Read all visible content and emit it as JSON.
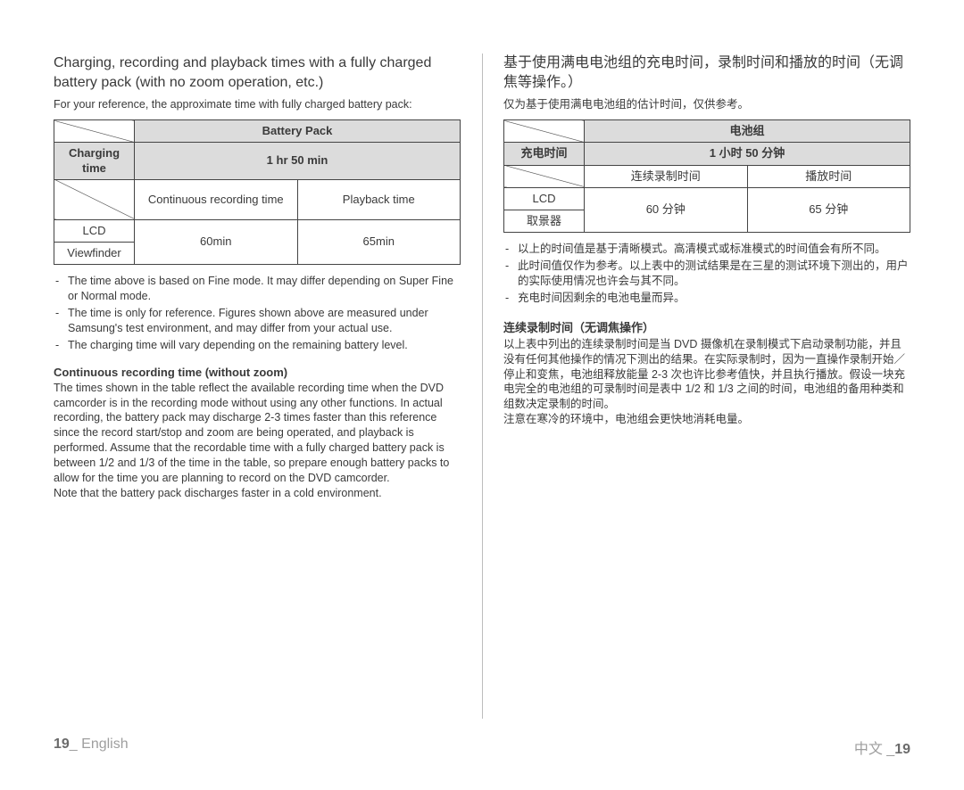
{
  "left": {
    "heading": "Charging, recording and playback times with a fully charged battery pack (with no zoom operation, etc.)",
    "subtext": "For your reference, the approximate time with fully charged battery pack:",
    "table": {
      "header_battery": "Battery Pack",
      "row_charging_label": "Charging time",
      "row_charging_value": "1 hr 50 min",
      "col_rec": "Continuous recording time",
      "col_play": "Playback time",
      "row_lcd": "LCD",
      "row_vf": "Viewfinder",
      "val_rec": "60min",
      "val_play": "65min"
    },
    "notes": [
      "The time above is based on Fine mode. It may differ depending on Super Fine or Normal mode.",
      "The time is only for reference. Figures shown above are measured under Samsung's test environment, and may differ from your actual use.",
      "The charging time will vary depending on the remaining battery level."
    ],
    "section_title": "Continuous recording time (without zoom)",
    "body": "The times shown in the table reflect the available recording time when the DVD camcorder is in the recording mode without using any other functions. In actual recording, the battery pack may discharge 2-3 times faster than this reference since the record start/stop and zoom are being operated, and playback is performed. Assume that the recordable time with a fully charged battery pack is between 1/2 and 1/3 of the time in the table, so prepare enough battery packs to allow for the time you are planning to record on the DVD camcorder.",
    "body2": "Note that the battery pack discharges faster in a cold environment."
  },
  "right": {
    "heading": "基于使用满电电池组的充电时间，录制时间和播放的时间（无调焦等操作。）",
    "subtext": "仅为基于使用满电电池组的估计时间，仅供参考。",
    "table": {
      "header_battery": "电池组",
      "row_charging_label": "充电时间",
      "row_charging_value": "1 小时  50  分钟",
      "col_rec": "连续录制时间",
      "col_play": "播放时间",
      "row_lcd": "LCD",
      "row_vf": "取景器",
      "val_rec": "60 分钟",
      "val_play": "65 分钟"
    },
    "notes": [
      "以上的时间值是基于清晰模式。高清模式或标准模式的时间值会有所不同。",
      "此时间值仅作为参考。以上表中的测试结果是在三星的测试环境下测出的，用户的实际使用情况也许会与其不同。",
      "充电时间因剩余的电池电量而异。"
    ],
    "section_title": "连续录制时间（无调焦操作）",
    "body": "以上表中列出的连续录制时间是当 DVD 摄像机在录制模式下启动录制功能，并且没有任何其他操作的情况下测出的结果。在实际录制时，因为一直操作录制开始／停止和变焦，电池组释放能量 2-3 次也许比参考值快，并且执行播放。假设一块充电完全的电池组的可录制时间是表中 1/2 和 1/3 之间的时间，电池组的备用种类和组数决定录制的时间。",
    "body2": "注意在寒冷的环境中，电池组会更快地消耗电量。"
  },
  "footer": {
    "page_num": "19",
    "left_lang": "English",
    "right_lang": "中文"
  }
}
